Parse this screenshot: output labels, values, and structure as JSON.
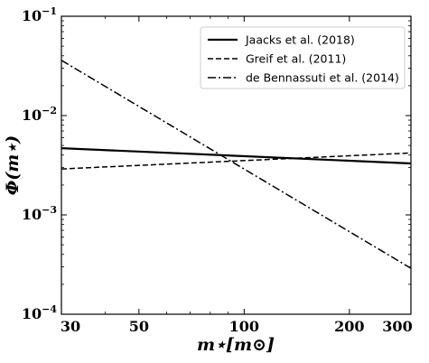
{
  "chart_data": {
    "type": "line",
    "title": "",
    "xlabel": "m⋆[m⊙]",
    "ylabel": "Φ(m⋆)",
    "xscale": "log",
    "yscale": "log",
    "xlim": [
      30,
      300
    ],
    "ylim": [
      0.0001,
      0.1
    ],
    "xticks": [
      30,
      50,
      100,
      200,
      300
    ],
    "xtick_labels": [
      "30",
      "50",
      "100",
      "200",
      "300"
    ],
    "yticks": [
      0.0001,
      0.001,
      0.01,
      0.1
    ],
    "ytick_labels": [
      {
        "base": "10",
        "exp": "−4"
      },
      {
        "base": "10",
        "exp": "−3"
      },
      {
        "base": "10",
        "exp": "−2"
      },
      {
        "base": "10",
        "exp": "−1"
      }
    ],
    "grid": false,
    "legend_position": "top-right",
    "series": [
      {
        "name": "Jaacks et al. (2018)",
        "style": "solid",
        "color": "#000000",
        "x": [
          30,
          300
        ],
        "y": [
          0.0047,
          0.0033
        ]
      },
      {
        "name": "Greif et al. (2011)",
        "style": "dashed",
        "color": "#000000",
        "x": [
          30,
          300
        ],
        "y": [
          0.0029,
          0.0042
        ]
      },
      {
        "name": "de Bennassuti et al. (2014)",
        "style": "dashdot",
        "color": "#000000",
        "x": [
          30,
          300
        ],
        "y": [
          0.036,
          0.00029
        ]
      }
    ]
  }
}
